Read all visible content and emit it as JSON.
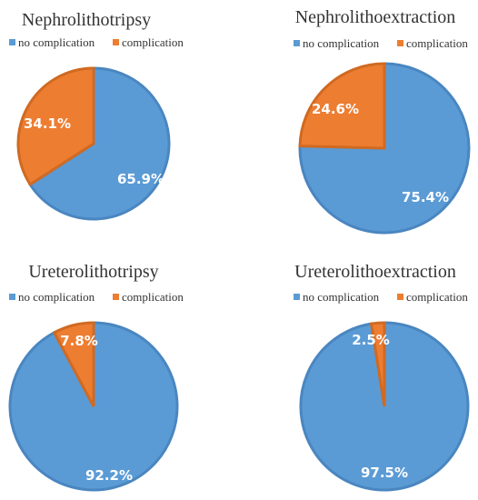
{
  "colors": {
    "no_complication": "#5B9BD5",
    "no_complication_border": "#4A86C0",
    "complication": "#ED7D31",
    "complication_border": "#D06A22"
  },
  "chart_data": [
    {
      "type": "pie",
      "title": "Nephrolithotripsy",
      "legend": [
        "no complication",
        "complication"
      ],
      "legend_position": "top",
      "slices": [
        {
          "name": "no complication",
          "value": 65.9,
          "label": "65.9%"
        },
        {
          "name": "complication",
          "value": 34.1,
          "label": "34.1%"
        }
      ]
    },
    {
      "type": "pie",
      "title": "Nephrolithoextraction",
      "legend": [
        "no complication",
        "complication"
      ],
      "legend_position": "top",
      "slices": [
        {
          "name": "no complication",
          "value": 75.4,
          "label": "75.4%"
        },
        {
          "name": "complication",
          "value": 24.6,
          "label": "24.6%"
        }
      ]
    },
    {
      "type": "pie",
      "title": "Ureterolithotripsy",
      "legend": [
        "no complication",
        "complication"
      ],
      "legend_position": "top",
      "slices": [
        {
          "name": "no complication",
          "value": 92.2,
          "label": "92.2%"
        },
        {
          "name": "complication",
          "value": 7.8,
          "label": "7.8%"
        }
      ]
    },
    {
      "type": "pie",
      "title": "Ureterolithoextraction",
      "legend": [
        "no complication",
        "complication"
      ],
      "legend_position": "top",
      "slices": [
        {
          "name": "no complication",
          "value": 97.5,
          "label": "97.5%"
        },
        {
          "name": "complication",
          "value": 2.5,
          "label": "2.5%"
        }
      ]
    }
  ]
}
